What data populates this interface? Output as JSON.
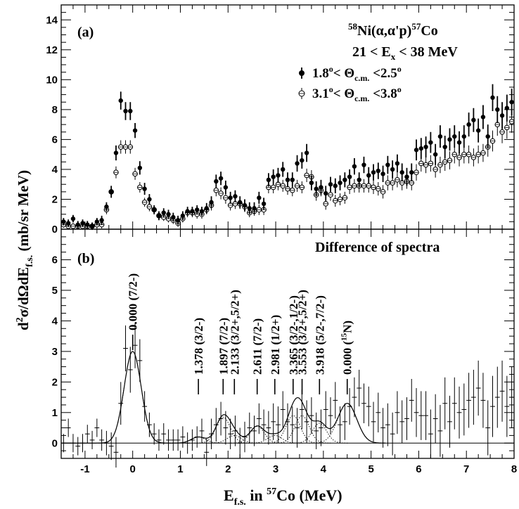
{
  "chart_data": [
    {
      "type": "scatter",
      "panel_label": "(a)",
      "reaction": "58Ni(α,α'p)57Co",
      "reaction_parts": {
        "mass": "58",
        "target": "Ni(α,α'p)",
        "product_mass": "57",
        "product": "Co"
      },
      "energy_window": {
        "prefix": "21 < E",
        "sub": "x",
        "suffix": " < 38 MeV"
      },
      "xlim": [
        -1.5,
        8.0
      ],
      "ylim": [
        0,
        15
      ],
      "y_ticks": [
        0,
        2,
        4,
        6,
        8,
        10,
        12,
        14
      ],
      "series": [
        {
          "name": "1.8°< Θc.m. <2.5°",
          "legend_parts": {
            "a": "1.8",
            "b": "< Θ",
            "sub": "c.m.",
            "c": " <2.5"
          },
          "marker": "filled-circle",
          "x": [
            -1.45,
            -1.35,
            -1.25,
            -1.15,
            -1.05,
            -0.95,
            -0.85,
            -0.75,
            -0.65,
            -0.55,
            -0.45,
            -0.35,
            -0.25,
            -0.15,
            -0.05,
            0.05,
            0.15,
            0.25,
            0.35,
            0.45,
            0.55,
            0.65,
            0.75,
            0.85,
            0.95,
            1.05,
            1.15,
            1.25,
            1.35,
            1.45,
            1.55,
            1.65,
            1.75,
            1.85,
            1.95,
            2.05,
            2.15,
            2.25,
            2.35,
            2.45,
            2.55,
            2.65,
            2.75,
            2.85,
            2.95,
            3.05,
            3.15,
            3.25,
            3.35,
            3.45,
            3.55,
            3.65,
            3.75,
            3.85,
            3.95,
            4.05,
            4.15,
            4.25,
            4.35,
            4.45,
            4.55,
            4.65,
            4.75,
            4.85,
            4.95,
            5.05,
            5.15,
            5.25,
            5.35,
            5.45,
            5.55,
            5.65,
            5.75,
            5.85,
            5.95,
            6.05,
            6.15,
            6.25,
            6.35,
            6.45,
            6.55,
            6.65,
            6.75,
            6.85,
            6.95,
            7.05,
            7.15,
            7.25,
            7.35,
            7.45,
            7.55,
            7.65,
            7.75,
            7.85,
            7.95
          ],
          "y": [
            0.5,
            0.4,
            0.7,
            0.3,
            0.4,
            0.3,
            0.2,
            0.5,
            0.6,
            1.5,
            2.5,
            5.1,
            8.6,
            7.9,
            7.9,
            6.6,
            4.1,
            2.7,
            2.0,
            1.3,
            0.9,
            1.1,
            1.0,
            0.8,
            0.6,
            0.9,
            1.2,
            1.2,
            1.3,
            1.2,
            1.4,
            1.8,
            3.2,
            3.4,
            2.8,
            2.1,
            2.2,
            1.8,
            1.6,
            1.4,
            1.4,
            2.1,
            1.7,
            3.3,
            3.5,
            3.6,
            4.0,
            3.3,
            3.3,
            4.4,
            4.6,
            5.1,
            3.1,
            2.7,
            2.8,
            2.4,
            3.0,
            2.9,
            3.1,
            3.3,
            3.5,
            4.2,
            3.3,
            4.3,
            3.6,
            3.8,
            3.9,
            3.7,
            4.3,
            4.0,
            4.4,
            3.8,
            3.5,
            3.8,
            5.3,
            5.4,
            5.5,
            5.8,
            5.0,
            6.2,
            5.5,
            6.0,
            6.2,
            5.8,
            6.2,
            7.0,
            7.3,
            6.6,
            7.5,
            6.2,
            8.8,
            8.0,
            7.6,
            8.1,
            8.5
          ],
          "yerr": [
            0.25,
            0.25,
            0.25,
            0.25,
            0.25,
            0.25,
            0.25,
            0.25,
            0.3,
            0.3,
            0.4,
            0.5,
            0.6,
            0.6,
            0.6,
            0.5,
            0.45,
            0.4,
            0.35,
            0.3,
            0.3,
            0.3,
            0.3,
            0.3,
            0.3,
            0.3,
            0.3,
            0.3,
            0.3,
            0.3,
            0.35,
            0.4,
            0.45,
            0.45,
            0.45,
            0.4,
            0.4,
            0.4,
            0.4,
            0.4,
            0.4,
            0.4,
            0.4,
            0.45,
            0.5,
            0.5,
            0.5,
            0.5,
            0.5,
            0.55,
            0.55,
            0.6,
            0.5,
            0.5,
            0.5,
            0.5,
            0.5,
            0.5,
            0.5,
            0.5,
            0.5,
            0.55,
            0.5,
            0.55,
            0.55,
            0.55,
            0.55,
            0.55,
            0.6,
            0.6,
            0.6,
            0.6,
            0.6,
            0.6,
            0.7,
            0.7,
            0.7,
            0.7,
            0.7,
            0.75,
            0.75,
            0.75,
            0.75,
            0.75,
            0.75,
            0.8,
            0.8,
            0.8,
            0.8,
            0.8,
            0.9,
            0.9,
            0.9,
            0.9,
            0.9
          ]
        },
        {
          "name": "3.1°< Θc.m. <3.8°",
          "legend_parts": {
            "a": "3.1",
            "b": "< Θ",
            "sub": "c.m.",
            "c": " <3.8"
          },
          "marker": "open-circle-cross",
          "x": [
            -1.45,
            -1.35,
            -1.25,
            -1.15,
            -1.05,
            -0.95,
            -0.85,
            -0.75,
            -0.65,
            -0.55,
            -0.45,
            -0.35,
            -0.25,
            -0.15,
            -0.05,
            0.05,
            0.15,
            0.25,
            0.35,
            0.45,
            0.55,
            0.65,
            0.75,
            0.85,
            0.95,
            1.05,
            1.15,
            1.25,
            1.35,
            1.45,
            1.55,
            1.65,
            1.75,
            1.85,
            1.95,
            2.05,
            2.15,
            2.25,
            2.35,
            2.45,
            2.55,
            2.65,
            2.75,
            2.85,
            2.95,
            3.05,
            3.15,
            3.25,
            3.35,
            3.45,
            3.55,
            3.65,
            3.75,
            3.85,
            3.95,
            4.05,
            4.15,
            4.25,
            4.35,
            4.45,
            4.55,
            4.65,
            4.75,
            4.85,
            4.95,
            5.05,
            5.15,
            5.25,
            5.35,
            5.45,
            5.55,
            5.65,
            5.75,
            5.85,
            5.95,
            6.05,
            6.15,
            6.25,
            6.35,
            6.45,
            6.55,
            6.65,
            6.75,
            6.85,
            6.95,
            7.05,
            7.15,
            7.25,
            7.35,
            7.45,
            7.55,
            7.65,
            7.75,
            7.85,
            7.95
          ],
          "y": [
            0.3,
            0.2,
            0.2,
            0.2,
            0.2,
            0.2,
            0.2,
            0.3,
            0.3,
            1.3,
            2.5,
            3.8,
            5.5,
            5.5,
            5.5,
            3.7,
            2.8,
            1.8,
            1.5,
            1.3,
            0.9,
            0.8,
            0.7,
            0.6,
            0.4,
            0.7,
            1.1,
            1.1,
            1.0,
            1.0,
            1.3,
            1.6,
            2.6,
            2.4,
            2.1,
            1.6,
            1.7,
            1.7,
            1.5,
            1.1,
            1.2,
            1.3,
            1.3,
            2.8,
            2.8,
            3.0,
            2.9,
            2.7,
            2.6,
            2.9,
            2.8,
            3.6,
            3.5,
            2.3,
            2.6,
            1.7,
            2.3,
            1.9,
            2.0,
            2.1,
            2.8,
            2.9,
            2.9,
            2.9,
            2.9,
            2.8,
            2.7,
            2.5,
            3.1,
            3.1,
            3.3,
            3.1,
            3.2,
            3.1,
            3.8,
            4.4,
            4.3,
            4.4,
            4.0,
            4.3,
            4.5,
            4.6,
            5.0,
            4.8,
            5.0,
            5.0,
            4.8,
            5.0,
            5.1,
            5.5,
            5.9,
            7.0,
            6.5,
            6.8,
            7.2
          ],
          "yerr": [
            0.2,
            0.2,
            0.2,
            0.2,
            0.2,
            0.2,
            0.2,
            0.2,
            0.25,
            0.3,
            0.35,
            0.4,
            0.45,
            0.45,
            0.45,
            0.4,
            0.35,
            0.3,
            0.3,
            0.3,
            0.25,
            0.25,
            0.25,
            0.25,
            0.25,
            0.25,
            0.3,
            0.3,
            0.3,
            0.3,
            0.3,
            0.35,
            0.4,
            0.4,
            0.4,
            0.35,
            0.35,
            0.35,
            0.35,
            0.3,
            0.3,
            0.35,
            0.35,
            0.4,
            0.4,
            0.4,
            0.4,
            0.4,
            0.4,
            0.4,
            0.4,
            0.45,
            0.45,
            0.4,
            0.4,
            0.4,
            0.4,
            0.4,
            0.4,
            0.4,
            0.45,
            0.45,
            0.45,
            0.45,
            0.45,
            0.45,
            0.45,
            0.45,
            0.5,
            0.5,
            0.5,
            0.5,
            0.5,
            0.5,
            0.55,
            0.55,
            0.55,
            0.55,
            0.55,
            0.55,
            0.6,
            0.6,
            0.6,
            0.6,
            0.6,
            0.6,
            0.6,
            0.6,
            0.6,
            0.65,
            0.7,
            0.75,
            0.75,
            0.75,
            0.75
          ]
        }
      ]
    },
    {
      "type": "scatter",
      "panel_label": "(b)",
      "title": "Difference of spectra",
      "xlim": [
        -1.5,
        8.0
      ],
      "ylim": [
        -0.5,
        7.0
      ],
      "y_ticks": [
        0,
        1,
        2,
        3,
        4,
        5,
        6
      ],
      "x_ticks": [
        -1,
        0,
        1,
        2,
        3,
        4,
        5,
        6,
        7,
        8
      ],
      "x": [
        -1.45,
        -1.35,
        -1.25,
        -1.15,
        -1.05,
        -0.95,
        -0.85,
        -0.75,
        -0.65,
        -0.55,
        -0.45,
        -0.35,
        -0.25,
        -0.15,
        -0.05,
        0.05,
        0.15,
        0.25,
        0.35,
        0.45,
        0.55,
        0.65,
        0.75,
        0.85,
        0.95,
        1.05,
        1.15,
        1.25,
        1.35,
        1.45,
        1.55,
        1.65,
        1.75,
        1.85,
        1.95,
        2.05,
        2.15,
        2.25,
        2.35,
        2.45,
        2.55,
        2.65,
        2.75,
        2.85,
        2.95,
        3.05,
        3.15,
        3.25,
        3.35,
        3.45,
        3.55,
        3.65,
        3.75,
        3.85,
        3.95,
        4.05,
        4.15,
        4.25,
        4.35,
        4.45,
        4.55,
        4.65,
        4.75,
        4.85,
        4.95,
        5.05,
        5.15,
        5.25,
        5.35,
        5.45,
        5.55,
        5.65,
        5.75,
        5.85,
        5.95,
        6.05,
        6.15,
        6.25,
        6.35,
        6.45,
        6.55,
        6.65,
        6.75,
        6.85,
        6.95,
        7.05,
        7.15,
        7.25,
        7.35,
        7.45,
        7.55,
        7.65,
        7.75,
        7.85,
        7.95
      ],
      "y": [
        0.0,
        0.5,
        0.0,
        -0.1,
        0.0,
        0.3,
        0.1,
        0.5,
        0.1,
        0.0,
        -0.1,
        -0.3,
        1.3,
        3.1,
        2.4,
        3.2,
        2.7,
        1.2,
        0.6,
        0.3,
        0.1,
        0.3,
        0.1,
        0.1,
        0.1,
        0.2,
        0.0,
        0.1,
        0.2,
        0.4,
        -0.3,
        0.3,
        0.6,
        0.8,
        0.5,
        0.3,
        0.4,
        0.0,
        0.2,
        0.5,
        0.4,
        0.8,
        0.6,
        0.5,
        0.7,
        0.6,
        1.1,
        0.7,
        0.6,
        0.5,
        1.1,
        0.7,
        0.9,
        0.4,
        0.5,
        1.1,
        0.9,
        1.4,
        0.6,
        0.7,
        1.2,
        1.5,
        1.8,
        1.3,
        1.2,
        0.7,
        1.0,
        0.5,
        0.6,
        0.3,
        1.0,
        0.7,
        0.8,
        1.4,
        1.0,
        0.9,
        0.9,
        0.3,
        0.8,
        0.4,
        1.3,
        0.7,
        1.3,
        1.0,
        1.1,
        1.4,
        1.5,
        1.8,
        1.4,
        0.5,
        1.2,
        1.5,
        1.7,
        1.2,
        1.5
      ],
      "yerr": [
        0.3,
        0.3,
        0.3,
        0.3,
        0.3,
        0.3,
        0.3,
        0.3,
        0.35,
        0.4,
        0.45,
        0.5,
        0.7,
        0.75,
        0.75,
        0.75,
        0.7,
        0.5,
        0.4,
        0.35,
        0.35,
        0.35,
        0.35,
        0.35,
        0.35,
        0.35,
        0.35,
        0.35,
        0.35,
        0.4,
        0.45,
        0.5,
        0.55,
        0.55,
        0.55,
        0.5,
        0.5,
        0.5,
        0.5,
        0.5,
        0.5,
        0.5,
        0.5,
        0.55,
        0.6,
        0.6,
        0.6,
        0.6,
        0.6,
        0.65,
        0.65,
        0.7,
        0.6,
        0.6,
        0.6,
        0.6,
        0.6,
        0.6,
        0.6,
        0.6,
        0.6,
        0.65,
        0.6,
        0.65,
        0.65,
        0.65,
        0.65,
        0.65,
        0.7,
        0.7,
        0.7,
        0.7,
        0.7,
        0.7,
        0.8,
        0.8,
        0.8,
        0.8,
        0.8,
        0.85,
        0.85,
        0.85,
        0.85,
        0.85,
        0.85,
        0.9,
        0.9,
        0.9,
        0.9,
        0.9,
        1.0,
        1.0,
        1.0,
        1.0,
        1.0
      ],
      "peaks": [
        {
          "energy": 0.0,
          "amp": 3.0,
          "width": 0.18,
          "label": "0.000 (7/2-)",
          "tick_y": 3.55
        },
        {
          "energy": 1.378,
          "amp": 0.2,
          "width": 0.15,
          "label": "1.378 (3/2-)",
          "tick_y": 2.1
        },
        {
          "energy": 1.897,
          "amp": 0.85,
          "width": 0.15,
          "label": "1.897 (7/2-)",
          "tick_y": 2.1
        },
        {
          "energy": 2.133,
          "amp": 0.25,
          "width": 0.15,
          "label": "2.133 (3/2+,5/2+)",
          "tick_y": 2.1
        },
        {
          "energy": 2.611,
          "amp": 0.55,
          "width": 0.15,
          "label": "2.611 (7/2-)",
          "tick_y": 2.1
        },
        {
          "energy": 2.981,
          "amp": 0.25,
          "width": 0.15,
          "label": "2.981 (1/2+)",
          "tick_y": 2.1
        },
        {
          "energy": 3.365,
          "amp": 0.9,
          "width": 0.15,
          "label": "3.365 (3/2-,1/2-)",
          "tick_y": 2.1
        },
        {
          "energy": 3.553,
          "amp": 0.9,
          "width": 0.15,
          "label": "3.553 (3/2+,5/2+)",
          "tick_y": 2.1
        },
        {
          "energy": 3.918,
          "amp": 0.65,
          "width": 0.15,
          "label": "3.918 (5/2-,7/2-)",
          "tick_y": 2.1
        },
        {
          "energy": 4.5,
          "amp": 1.3,
          "width": 0.2,
          "label": "0.000 (",
          "label_sup": "15",
          "label_end": "N)",
          "tick_y": 2.1
        }
      ]
    }
  ],
  "axes": {
    "ylabel": {
      "a": "d",
      "sup": "2",
      "b": "σ/dΩdE",
      "sub": "f.s.",
      "c": " (mb/sr MeV)"
    },
    "xlabel": {
      "a": "E",
      "sub": "f.s.",
      "b": " in ",
      "sup": "57",
      "c": "Co (MeV)"
    }
  }
}
